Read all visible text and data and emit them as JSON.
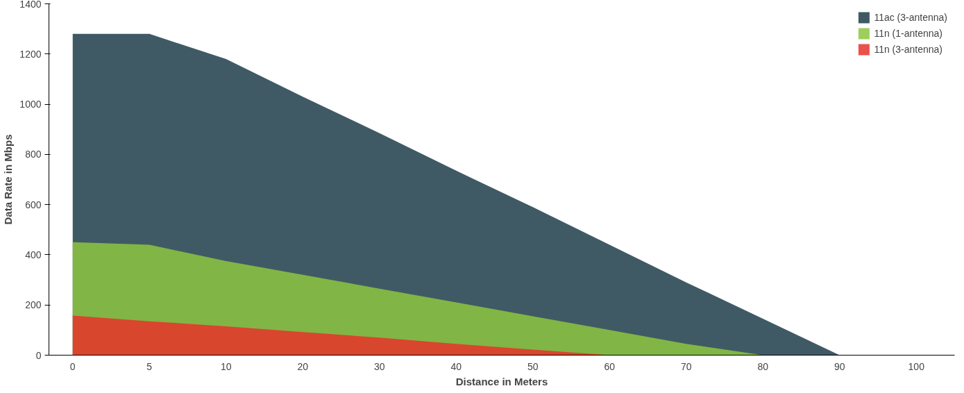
{
  "chart_data": {
    "type": "area",
    "xlabel": "Distance in Meters",
    "ylabel": "Data Rate in Mbps",
    "categories": [
      "0",
      "5",
      "10",
      "20",
      "30",
      "40",
      "50",
      "60",
      "70",
      "80",
      "90",
      "100"
    ],
    "series": [
      {
        "name": "11ac (3-antenna)",
        "color": "#1e3d4a",
        "values": [
          1280,
          1280,
          1180,
          1030,
          885,
          735,
          590,
          440,
          290,
          145,
          0,
          null
        ]
      },
      {
        "name": "11n (1-antenna)",
        "color": "#8dc63f",
        "values": [
          450,
          440,
          375,
          320,
          265,
          210,
          155,
          100,
          45,
          0,
          null,
          null
        ]
      },
      {
        "name": "11n (3-antenna)",
        "color": "#e8322a",
        "values": [
          158,
          135,
          115,
          92,
          70,
          45,
          22,
          0,
          null,
          null,
          null,
          null
        ]
      }
    ],
    "ylim": [
      0,
      1400
    ],
    "yticks": [
      0,
      200,
      400,
      600,
      800,
      1000,
      1200,
      1400
    ],
    "grid": false,
    "legend": "top right"
  }
}
